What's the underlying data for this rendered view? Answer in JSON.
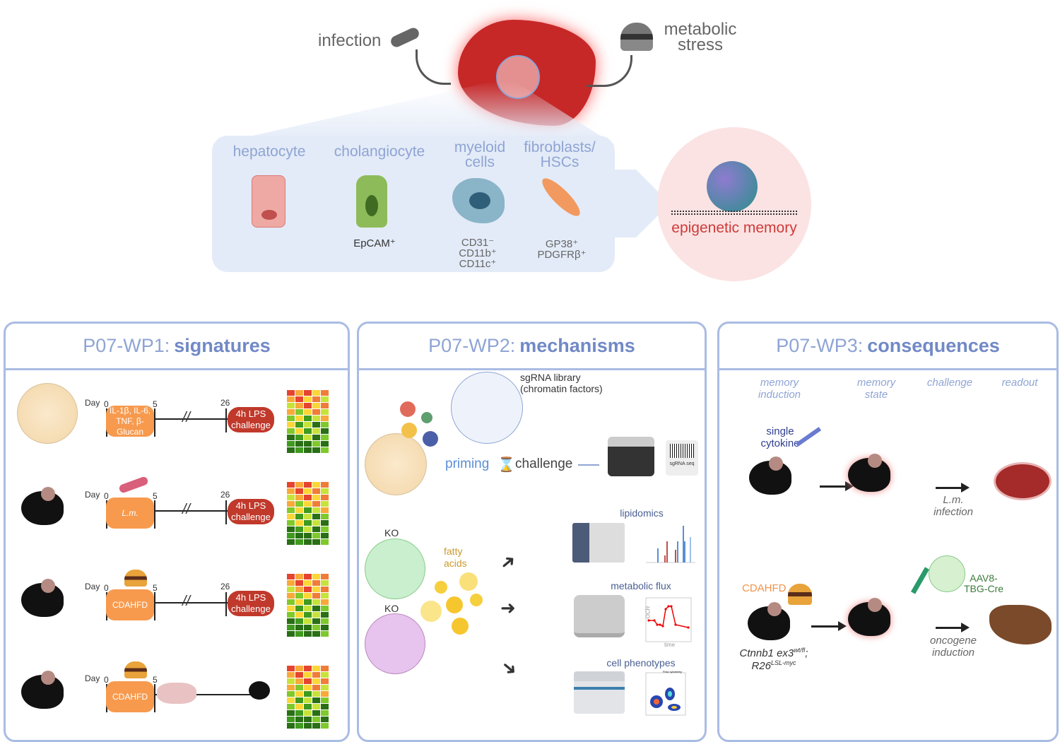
{
  "top": {
    "infection": "infection",
    "metabolic_stress": "metabolic stress",
    "cells": [
      {
        "name": "hepatocyte",
        "marker": ""
      },
      {
        "name": "cholangiocyte",
        "marker": "EpCAM⁺"
      },
      {
        "name": "myeloid cells",
        "marker": "CD31⁻ CD11b⁺ CD11c⁺"
      },
      {
        "name": "fibroblasts/ HSCs",
        "marker": "GP38⁺ PDGFRβ⁺"
      }
    ],
    "epigenetic": "epigenetic memory"
  },
  "wp1": {
    "title_prefix": "P07-WP1:",
    "title_bold": "signatures",
    "day": "Day",
    "d0": "0",
    "d5": "5",
    "d26": "26",
    "rows": [
      {
        "treatment": "IL-1β, IL-6, TNF, β-Glucan",
        "challenge": "4h LPS challenge"
      },
      {
        "treatment": "L.m.",
        "challenge": "4h LPS challenge"
      },
      {
        "treatment": "CDAHFD",
        "challenge": "4h LPS challenge"
      },
      {
        "treatment": "CDAHFD",
        "challenge": ""
      }
    ]
  },
  "wp2": {
    "title_prefix": "P07-WP2:",
    "title_bold": "mechanisms",
    "sgrna": "sgRNA library (chromatin factors)",
    "priming": "priming",
    "challenge": "challenge",
    "sgrna_seq": "sgRNA seq",
    "ko1": "KO 1",
    "ko2": "KO 2",
    "fatty_acids": "fatty acids",
    "lipidomics": "lipidomics",
    "metabolic_flux": "metabolic flux",
    "cell_phenotypes": "cell phenotypes",
    "ocr": "OCR",
    "time": "time",
    "flow": "Flow cytometry"
  },
  "wp3": {
    "title_prefix": "P07-WP3:",
    "title_bold": "consequences",
    "cols": [
      "memory induction",
      "memory state",
      "challenge",
      "readout"
    ],
    "single_cytokine": "single cytokine",
    "lm_infection": "L.m. infection",
    "cdahfd": "CDAHFD",
    "genotype1": "Ctnnb1 ex3",
    "genotype1_sup": "wt/fl",
    "genotype1_suffix": ";",
    "genotype2": "R26",
    "genotype2_sup": "LSL-myc",
    "aav": "AAV8- TBG-Cre",
    "oncogene": "oncogene induction"
  },
  "colors": {
    "panel_border": "#a9bce3",
    "title": "#8fa4d4",
    "orange": "#f79a4e",
    "challenge_red": "#c0392b",
    "epigenetic": "#d03a3a"
  }
}
